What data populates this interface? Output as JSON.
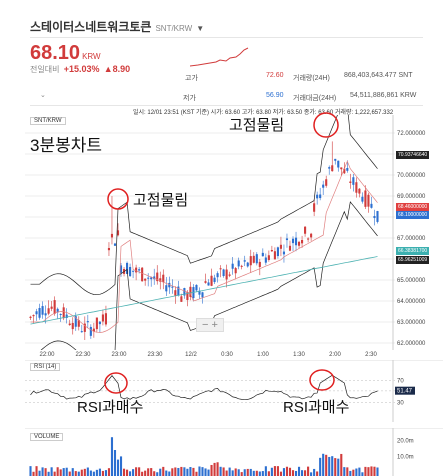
{
  "header": {
    "title": "스테이터스네트워크토큰",
    "pair": "SNT/KRW",
    "price": "68.10",
    "price_unit": "KRW",
    "change_label": "전일대비",
    "change_pct": "+15.03%",
    "change_abs": "▲8.90",
    "high_label": "고가",
    "high_value": "72.60",
    "low_label": "저가",
    "low_value": "56.90",
    "volume_label": "거래량(24H)",
    "volume_value": "868,403,643.477",
    "volume_unit": "SNT",
    "amount_label": "거래대금(24H)",
    "amount_value": "54,511,886,861",
    "amount_unit": "KRW"
  },
  "chart": {
    "infobar": "일시: 12/01 23:51 (KST 기준) 시가: 63.60 고가: 63.80 저가: 63.50 종가: 63.60 거래량: 1,222,657.332",
    "symbol_label": "SNT/KRW",
    "rsi_label": "RSI (14)",
    "volume_label": "VOLUME",
    "x_ticks": [
      "22:00",
      "22:30",
      "23:00",
      "23:30",
      "12/2",
      "0:30",
      "1:00",
      "1:30",
      "2:00",
      "2:30"
    ],
    "price_ticks": [
      "72.000000",
      "71.000000",
      "70.000000",
      "69.000000",
      "68.000000",
      "67.000000",
      "66.000000",
      "65.000000",
      "64.000000",
      "63.000000",
      "62.000000"
    ],
    "price_tags": [
      "70.93746640",
      "68.46000000",
      "68.10000000",
      "66.38381700",
      "65.96251009"
    ],
    "rsi_ticks": [
      "70",
      "51.47",
      "30"
    ],
    "vol_ticks": [
      "20.0m",
      "10.0m"
    ]
  },
  "annotations": {
    "top_left": "3분봉차트",
    "peak_1": "고점물림",
    "peak_2": "고점물림",
    "rsi_1": "RSI과매수",
    "rsi_2": "RSI과매수"
  },
  "colors": {
    "up": "#d13b3b",
    "down": "#2c6fd0",
    "circle": "#e02020"
  }
}
